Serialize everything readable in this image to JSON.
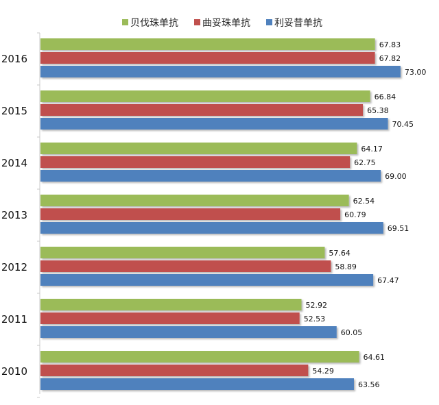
{
  "chart_data": {
    "type": "bar",
    "orientation": "horizontal",
    "categories": [
      "2016",
      "2015",
      "2014",
      "2013",
      "2012",
      "2011",
      "2010"
    ],
    "series": [
      {
        "name": "贝伐珠单抗",
        "color": "#9BBB59",
        "values": [
          67.83,
          66.84,
          64.17,
          62.54,
          57.64,
          52.92,
          64.61
        ]
      },
      {
        "name": "曲妥珠单抗",
        "color": "#C0504D",
        "values": [
          67.82,
          65.38,
          62.75,
          60.79,
          58.89,
          52.53,
          54.29
        ]
      },
      {
        "name": "利妥昔单抗",
        "color": "#4F81BD",
        "values": [
          73.0,
          70.45,
          69.0,
          69.51,
          67.47,
          60.05,
          63.56
        ]
      }
    ],
    "value_labels": [
      [
        "67.83",
        "67.82",
        "73.00"
      ],
      [
        "66.84",
        "65.38",
        "70.45"
      ],
      [
        "64.17",
        "62.75",
        "69.00"
      ],
      [
        "62.54",
        "60.79",
        "69.51"
      ],
      [
        "57.64",
        "58.89",
        "67.47"
      ],
      [
        "52.92",
        "52.53",
        "60.05"
      ],
      [
        "64.61",
        "54.29",
        "63.56"
      ]
    ],
    "xlim": [
      0,
      80
    ],
    "legend": "top-center",
    "grid": false
  }
}
